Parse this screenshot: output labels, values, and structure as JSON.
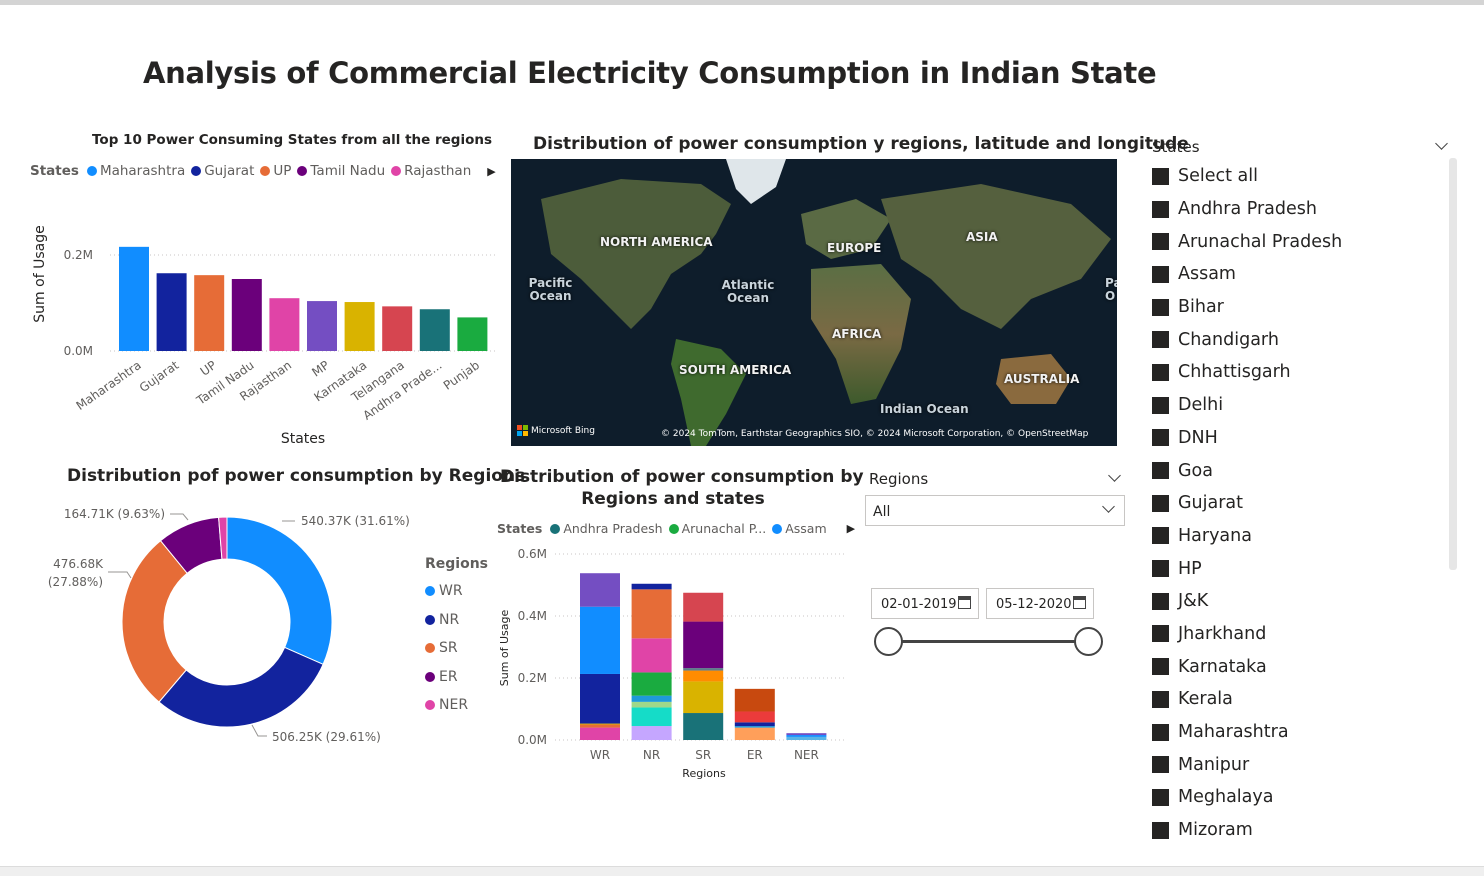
{
  "page": {
    "title": "Analysis of Commercial Electricity Consumption in Indian State"
  },
  "top10": {
    "title": "Top 10 Power Consuming States from all the regions",
    "legend_title": "States",
    "legend": [
      {
        "name": "Maharashtra",
        "color": "#118DFF"
      },
      {
        "name": "Gujarat",
        "color": "#12239E"
      },
      {
        "name": "UP",
        "color": "#E66C37"
      },
      {
        "name": "Tamil Nadu",
        "color": "#6B007B"
      },
      {
        "name": "Rajasthan",
        "color": "#E044A7"
      }
    ],
    "xlabel": "States",
    "ylabel": "Sum of Usage",
    "yticks": [
      "0.0M",
      "0.2M"
    ]
  },
  "map": {
    "title": "Distribution of power consumption y regions, latitude and longitude",
    "labels": [
      "NORTH AMERICA",
      "EUROPE",
      "ASIA",
      "AFRICA",
      "SOUTH AMERICA",
      "AUSTRALIA"
    ],
    "oceans": [
      "Pacific Ocean",
      "Atlantic Ocean",
      "Indian Ocean",
      "Pa O"
    ],
    "brand": "Microsoft Bing",
    "attribution": "© 2024 TomTom, Earthstar Geographics SIO, © 2024 Microsoft Corporation, © OpenStreetMap"
  },
  "donut": {
    "title": "Distribution pof power consumption by Regions",
    "legend_title": "Regions",
    "labels": [
      "540.37K (31.61%)",
      "506.25K (29.61%)",
      "476.68K",
      "(27.88%)",
      "164.71K (9.63%)"
    ]
  },
  "stacked": {
    "title_line1": "Distribution of power consumption by",
    "title_line2": "Regions and states",
    "legend_title": "States",
    "legend": [
      {
        "name": "Andhra Pradesh",
        "color": "#197278"
      },
      {
        "name": "Arunachal P...",
        "color": "#1AAB40"
      },
      {
        "name": "Assam",
        "color": "#118DFF"
      }
    ],
    "xlabel": "Regions",
    "ylabel": "Sum of Usage",
    "yticks": [
      "0.0M",
      "0.2M",
      "0.4M",
      "0.6M"
    ]
  },
  "regions_slicer": {
    "title": "Regions",
    "value": "All"
  },
  "date_slicer": {
    "start": "02-01-2019",
    "end": "05-12-2020"
  },
  "states_slicer": {
    "title": "States",
    "items": [
      "Select all",
      "Andhra Pradesh",
      "Arunachal Pradesh",
      "Assam",
      "Bihar",
      "Chandigarh",
      "Chhattisgarh",
      "Delhi",
      "DNH",
      "Goa",
      "Gujarat",
      "Haryana",
      "HP",
      "J&K",
      "Jharkhand",
      "Karnataka",
      "Kerala",
      "Maharashtra",
      "Manipur",
      "Meghalaya",
      "Mizoram"
    ]
  },
  "chart_data": [
    {
      "type": "bar",
      "title": "Top 10 Power Consuming States from all the regions",
      "xlabel": "States",
      "ylabel": "Sum of Usage",
      "categories": [
        "Maharashtra",
        "Gujarat",
        "UP",
        "Tamil Nadu",
        "Rajasthan",
        "MP",
        "Karnataka",
        "Telangana",
        "Andhra Prade...",
        "Punjab"
      ],
      "values": [
        0.217,
        0.162,
        0.158,
        0.15,
        0.11,
        0.104,
        0.102,
        0.093,
        0.087,
        0.07
      ],
      "colors": [
        "#118DFF",
        "#12239E",
        "#E66C37",
        "#6B007B",
        "#E044A7",
        "#744EC2",
        "#D9B300",
        "#D64550",
        "#197278",
        "#1AAB40"
      ],
      "unit": "M",
      "ylim": [
        0,
        0.25
      ],
      "grid": true
    },
    {
      "type": "pie",
      "title": "Distribution pof power consumption by Regions",
      "categories": [
        "WR",
        "NR",
        "SR",
        "ER",
        "NER"
      ],
      "values": [
        540.37,
        506.25,
        476.68,
        164.71,
        21.8
      ],
      "unit": "K",
      "colors": [
        "#118DFF",
        "#12239E",
        "#E66C37",
        "#6B007B",
        "#E044A7"
      ],
      "legend": "right"
    },
    {
      "type": "bar",
      "stacked": true,
      "title": "Distribution of power consumption by Regions and states",
      "xlabel": "Regions",
      "ylabel": "Sum of Usage",
      "categories": [
        "WR",
        "NR",
        "SR",
        "ER",
        "NER"
      ],
      "ylim": [
        0,
        0.6
      ],
      "unit": "M",
      "stacks": [
        [
          {
            "v": 0.04,
            "c": "#E044A7"
          },
          {
            "v": 0.01,
            "c": "#E66C37"
          },
          {
            "v": 0.003,
            "c": "#D9B300"
          },
          {
            "v": 0.16,
            "c": "#12239E"
          },
          {
            "v": 0.217,
            "c": "#118DFF"
          },
          {
            "v": 0.108,
            "c": "#744EC2"
          }
        ],
        [
          {
            "v": 0.045,
            "c": "#C5A6FF"
          },
          {
            "v": 0.06,
            "c": "#15DCC8"
          },
          {
            "v": 0.018,
            "c": "#9FD88A"
          },
          {
            "v": 0.02,
            "c": "#1F9ADA"
          },
          {
            "v": 0.075,
            "c": "#1AAB40"
          },
          {
            "v": 0.11,
            "c": "#E044A7"
          },
          {
            "v": 0.158,
            "c": "#E66C37"
          },
          {
            "v": 0.018,
            "c": "#12239E"
          }
        ],
        [
          {
            "v": 0.087,
            "c": "#197278"
          },
          {
            "v": 0.102,
            "c": "#D9B300"
          },
          {
            "v": 0.035,
            "c": "#FF8C00"
          },
          {
            "v": 0.008,
            "c": "#5C7C8A"
          },
          {
            "v": 0.15,
            "c": "#6B007B"
          },
          {
            "v": 0.093,
            "c": "#D64550"
          }
        ],
        [
          {
            "v": 0.04,
            "c": "#FF9F5A"
          },
          {
            "v": 0.005,
            "c": "#1F9ADA"
          },
          {
            "v": 0.012,
            "c": "#12239E"
          },
          {
            "v": 0.035,
            "c": "#EB3B3B"
          },
          {
            "v": 0.073,
            "c": "#C8490F"
          }
        ],
        [
          {
            "v": 0.01,
            "c": "#5AB4E6"
          },
          {
            "v": 0.006,
            "c": "#118DFF"
          },
          {
            "v": 0.006,
            "c": "#744EC2"
          }
        ]
      ]
    }
  ]
}
